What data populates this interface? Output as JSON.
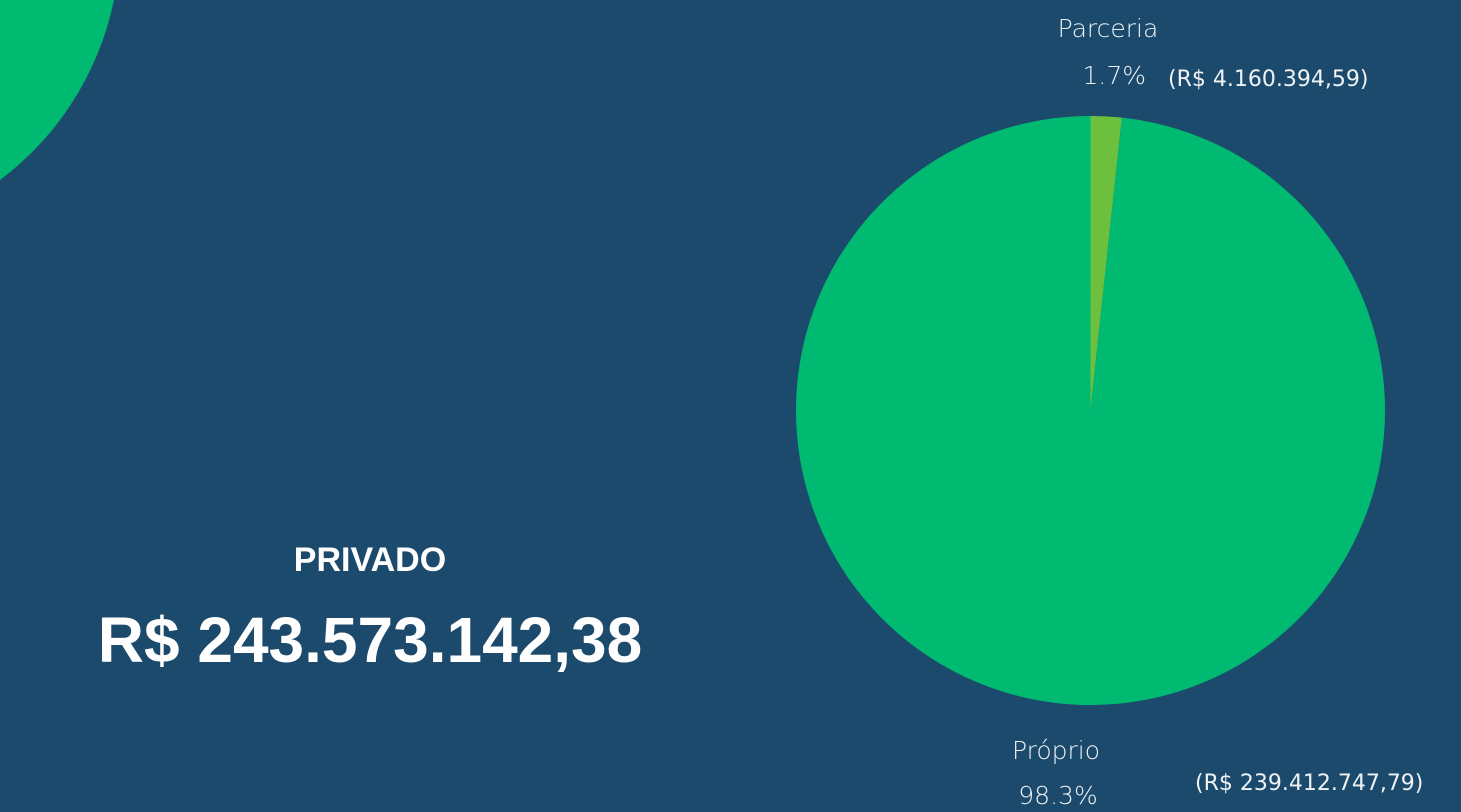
{
  "chart_data": {
    "type": "pie",
    "title": "PRIVADO",
    "subtitle": "R$ 243.573.142,38",
    "categories": [
      "Parceria",
      "Próprio"
    ],
    "values": [
      1.7,
      98.3
    ],
    "value_labels": [
      "1.7%",
      "98.3%"
    ],
    "annotations": [
      "(R$ 4.160.394,59)",
      "(R$ 239.412.747,79)"
    ],
    "colors": [
      "#6cc03e",
      "#00ba72"
    ]
  }
}
